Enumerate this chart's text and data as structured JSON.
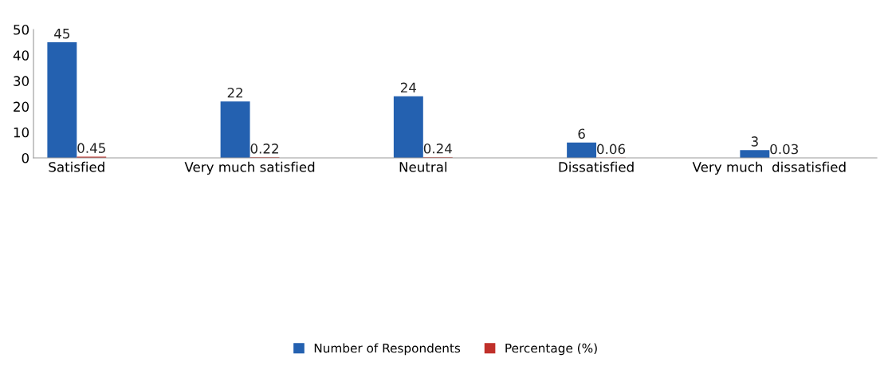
{
  "chart_data": {
    "type": "bar",
    "categories": [
      "Satisfied",
      "Very much satisfied",
      "Neutral",
      "Dissatisfied",
      "Very much  dissatisfied"
    ],
    "series": [
      {
        "name": "Number of Respondents",
        "color": "#2461b0",
        "values": [
          45,
          22,
          24,
          6,
          3
        ]
      },
      {
        "name": "Percentage (%)",
        "color": "#c0302a",
        "values": [
          0.45,
          0.22,
          0.24,
          0.06,
          0.03
        ]
      }
    ],
    "ylim": [
      0,
      50
    ],
    "yticks": [
      0,
      10,
      20,
      30,
      40,
      50
    ],
    "data_labels": true,
    "grid": false,
    "legend": "bottom"
  }
}
